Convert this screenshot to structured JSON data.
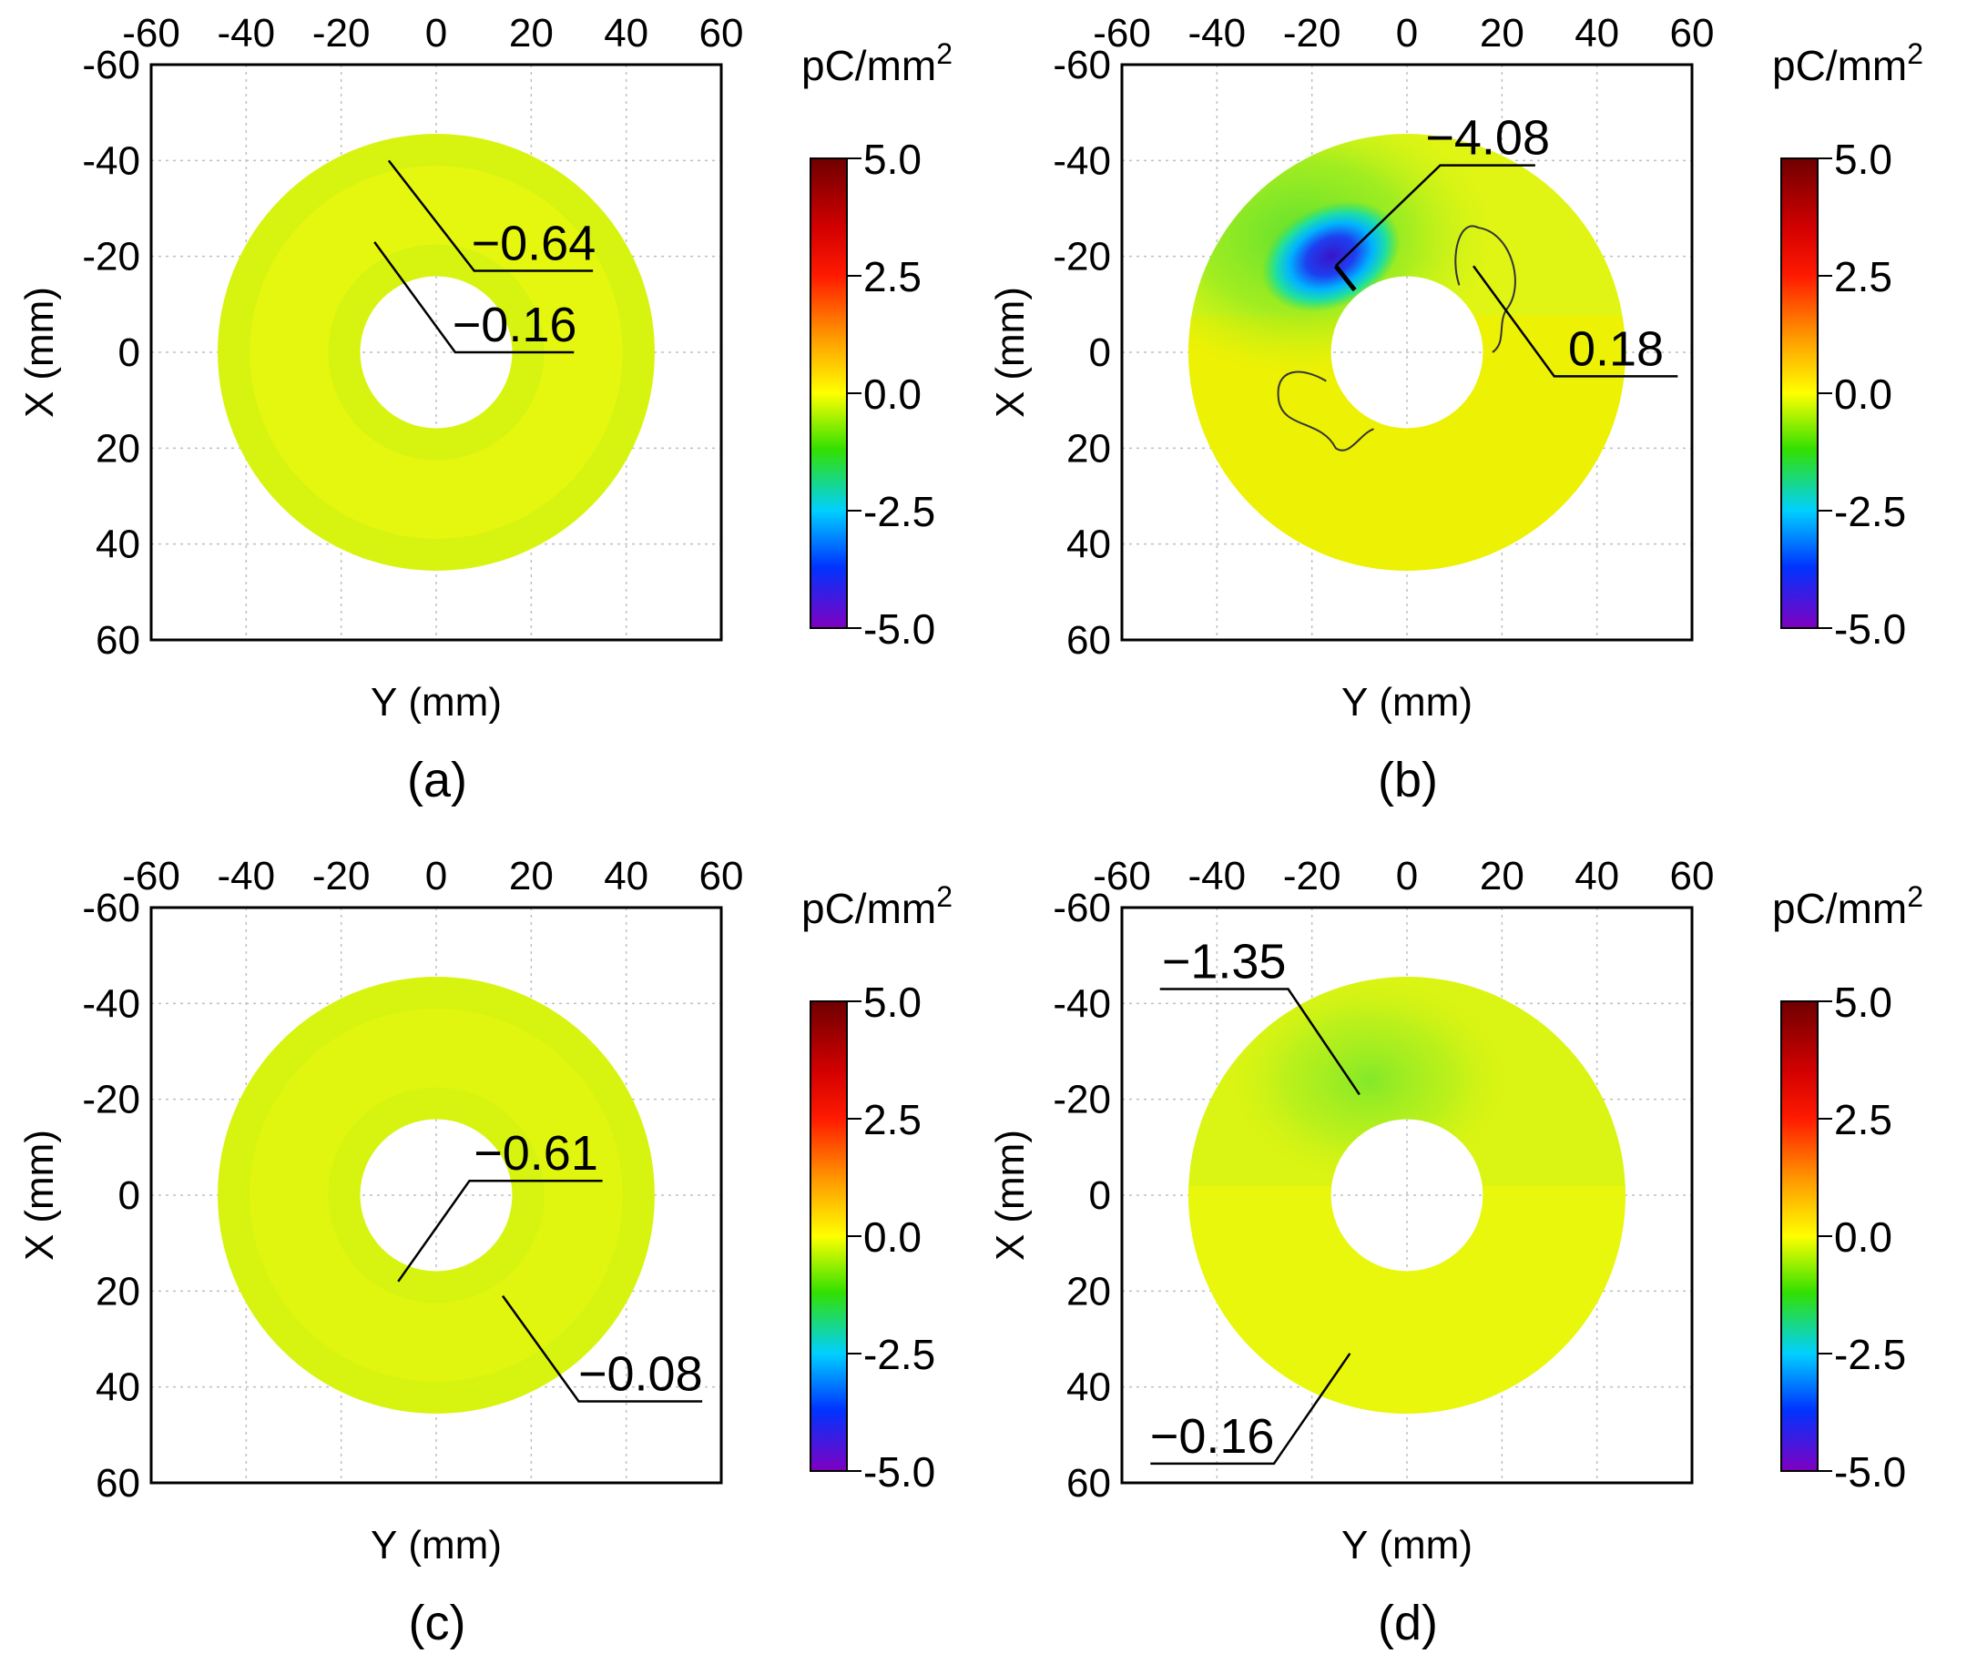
{
  "figure": {
    "panels": [
      {
        "id": "a",
        "caption": "(a)",
        "title_unit": "pC/mm",
        "unit_sup": "2",
        "x_label": "Y",
        "y_label": "X",
        "axis_unit": "(mm)",
        "ring_color": "#d7f411",
        "highlight_color": "#e8f70f",
        "annotations": [
          {
            "label": "−0.64",
            "point": [
              -10,
              -40
            ],
            "elbow": [
              8,
              -17
            ],
            "end": [
              33,
              -17
            ]
          },
          {
            "label": "−0.16",
            "point": [
              -13,
              -23
            ],
            "elbow": [
              4,
              0
            ],
            "end": [
              29,
              0
            ]
          }
        ]
      },
      {
        "id": "b",
        "caption": "(b)",
        "title_unit": "pC/mm",
        "unit_sup": "2",
        "x_label": "Y",
        "y_label": "X",
        "axis_unit": "(mm)",
        "ring_color": "#e0f514",
        "highlight_color": "#f0f000",
        "annotations": [
          {
            "label": "−4.08",
            "point": [
              -15,
              -18
            ],
            "elbow": [
              7,
              -39
            ],
            "end": [
              27,
              -39
            ]
          },
          {
            "label": "0.18",
            "point": [
              14,
              -18
            ],
            "elbow": [
              31,
              5
            ],
            "end": [
              57,
              5
            ]
          }
        ]
      },
      {
        "id": "c",
        "caption": "(c)",
        "title_unit": "pC/mm",
        "unit_sup": "2",
        "x_label": "Y",
        "y_label": "X",
        "axis_unit": "(mm)",
        "ring_color": "#d7f411",
        "highlight_color": "#e3f60f",
        "annotations": [
          {
            "label": "−0.61",
            "point": [
              -8,
              18
            ],
            "elbow": [
              7,
              -3
            ],
            "end": [
              35,
              -3
            ]
          },
          {
            "label": "−0.08",
            "point": [
              14,
              21
            ],
            "elbow": [
              30,
              43
            ],
            "end": [
              56,
              43
            ]
          }
        ]
      },
      {
        "id": "d",
        "caption": "(d)",
        "title_unit": "pC/mm",
        "unit_sup": "2",
        "x_label": "Y",
        "y_label": "X",
        "axis_unit": "(mm)",
        "ring_color": "#daf413",
        "highlight_color": "#eaf70c",
        "annotations": [
          {
            "label": "−1.35",
            "point": [
              -10,
              -21
            ],
            "elbow": [
              -25,
              -43
            ],
            "end": [
              -52,
              -43
            ]
          },
          {
            "label": "−0.16",
            "point": [
              -12,
              33
            ],
            "elbow": [
              -28,
              56
            ],
            "end": [
              -54,
              56
            ]
          }
        ]
      }
    ]
  },
  "chart_data": {
    "type": "heatmap",
    "description_type": "surface charge density contour maps on annular insulator (4 panels)",
    "x_axis": {
      "label": "Y (mm)",
      "range": [
        -60,
        60
      ],
      "ticks": [
        "-60",
        "-40",
        "-20",
        "0",
        "20",
        "40",
        "60"
      ],
      "position": "top"
    },
    "y_axis": {
      "label": "X (mm)",
      "range": [
        -60,
        60
      ],
      "ticks": [
        "-60",
        "-40",
        "-20",
        "0",
        "20",
        "40",
        "60"
      ],
      "inverted": true
    },
    "ring": {
      "inner_radius_mm": 16,
      "outer_radius_mm": 46,
      "center": [
        0,
        0
      ]
    },
    "colorbar": {
      "unit": "pC/mm",
      "unit_sup": "2",
      "range": [
        -5.0,
        5.0
      ],
      "ticks": [
        "5.0",
        "2.5",
        "0.0",
        "-2.5",
        "-5.0"
      ],
      "tick_values": [
        5.0,
        2.5,
        0.0,
        -2.5,
        -5.0
      ],
      "stops": [
        {
          "value": 5.0,
          "color": "#6e0000"
        },
        {
          "value": 3.5,
          "color": "#d40000"
        },
        {
          "value": 2.5,
          "color": "#ff1a00"
        },
        {
          "value": 1.2,
          "color": "#ff9900"
        },
        {
          "value": 0.0,
          "color": "#ffff00"
        },
        {
          "value": -1.2,
          "color": "#33e000"
        },
        {
          "value": -2.5,
          "color": "#00d0ff"
        },
        {
          "value": -3.7,
          "color": "#0033ff"
        },
        {
          "value": -5.0,
          "color": "#8000c0"
        }
      ]
    },
    "panels": [
      {
        "id": "a",
        "annotated_values": [
          -0.64,
          -0.16
        ]
      },
      {
        "id": "b",
        "annotated_values": [
          -4.08,
          0.18
        ]
      },
      {
        "id": "c",
        "annotated_values": [
          -0.61,
          -0.08
        ]
      },
      {
        "id": "d",
        "annotated_values": [
          -1.35,
          -0.16
        ]
      }
    ]
  }
}
